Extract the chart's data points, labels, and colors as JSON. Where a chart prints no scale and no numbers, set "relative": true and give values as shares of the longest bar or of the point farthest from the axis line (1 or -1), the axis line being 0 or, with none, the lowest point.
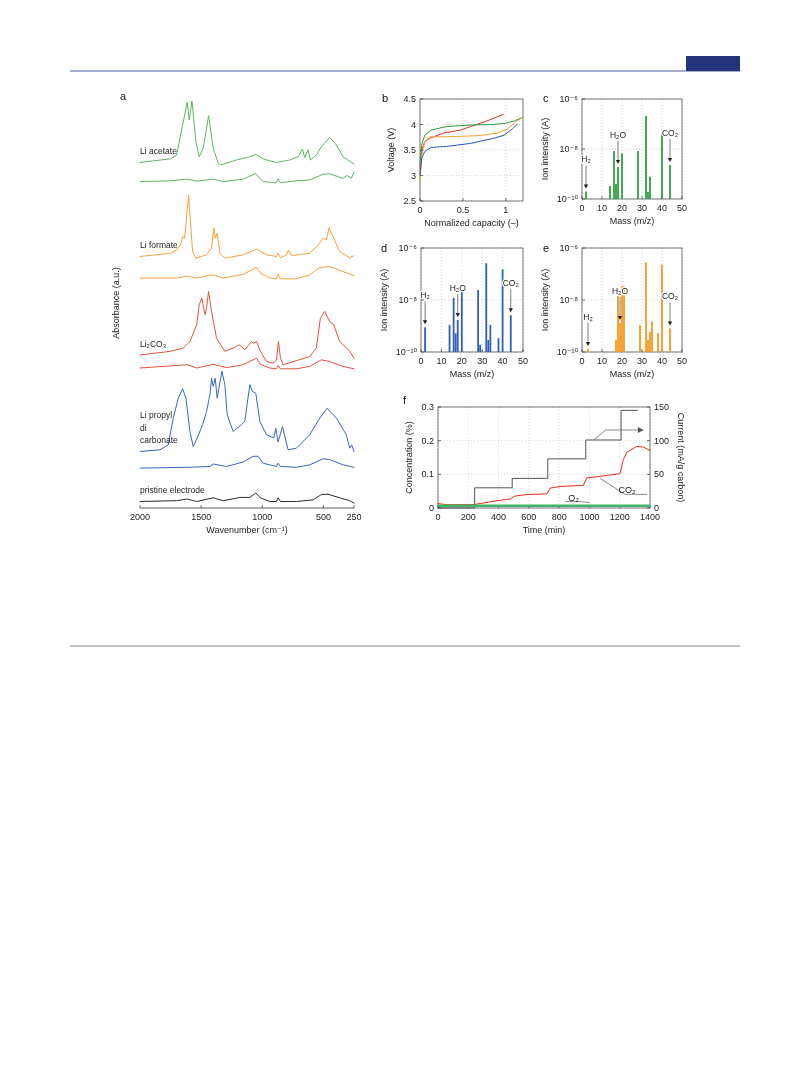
{
  "chart_data": [
    {
      "type": "line",
      "title": "a",
      "relative": true,
      "xlabel": "Wavenumber (cm⁻¹)",
      "ylabel": "Absorbance (a.u.)",
      "xlim": [
        2000,
        250
      ],
      "xticks": [
        2000,
        1500,
        1000,
        500,
        250
      ],
      "tick_labels": "x",
      "series": [
        {
          "name": "Li acetate",
          "color": "#5db760",
          "x": [
            2000,
            1750,
            1701,
            1614,
            1597,
            1575,
            1543,
            1516,
            1483,
            1439,
            1401,
            1360,
            1339,
            1211,
            1102,
            1053,
            993,
            939,
            884,
            775,
            707,
            672,
            653,
            626,
            607,
            558,
            517,
            490,
            449,
            394,
            340,
            250
          ],
          "values": [
            0.849,
            0.858,
            0.867,
            0.997,
            0.953,
            1.0,
            0.9,
            0.863,
            0.884,
            0.964,
            0.884,
            0.847,
            0.843,
            0.855,
            0.863,
            0.869,
            0.858,
            0.853,
            0.849,
            0.855,
            0.863,
            0.882,
            0.861,
            0.88,
            0.855,
            0.867,
            0.888,
            0.896,
            0.911,
            0.892,
            0.863,
            0.845
          ]
        },
        {
          "color": "#5db760",
          "x": [
            2000,
            1750,
            1614,
            1537,
            1401,
            1320,
            1156,
            1053,
            1031,
            993,
            884,
            871,
            851,
            721,
            612,
            503,
            449,
            340,
            307,
            272,
            250
          ],
          "values": [
            0.802,
            0.804,
            0.808,
            0.803,
            0.808,
            0.802,
            0.808,
            0.822,
            0.814,
            0.802,
            0.799,
            0.809,
            0.799,
            0.804,
            0.806,
            0.82,
            0.821,
            0.81,
            0.817,
            0.81,
            0.825
          ]
        },
        {
          "name": "Li formate",
          "color": "#f6a03c",
          "x": [
            2000,
            1750,
            1701,
            1668,
            1652,
            1635,
            1603,
            1570,
            1543,
            1456,
            1415,
            1396,
            1385,
            1369,
            1347,
            1306,
            1156,
            1047,
            966,
            884,
            871,
            851,
            802,
            786,
            762,
            612,
            544,
            503,
            476,
            454,
            422,
            367,
            285,
            250
          ],
          "values": [
            0.618,
            0.626,
            0.634,
            0.646,
            0.667,
            0.663,
            0.769,
            0.63,
            0.614,
            0.622,
            0.638,
            0.688,
            0.663,
            0.675,
            0.626,
            0.614,
            0.622,
            0.636,
            0.622,
            0.618,
            0.626,
            0.615,
            0.622,
            0.634,
            0.62,
            0.626,
            0.646,
            0.663,
            0.659,
            0.688,
            0.667,
            0.63,
            0.615,
            0.62
          ]
        },
        {
          "color": "#f6a03c",
          "x": [
            2000,
            1701,
            1614,
            1537,
            1401,
            1320,
            1156,
            1047,
            1015,
            939,
            884,
            871,
            851,
            721,
            612,
            530,
            449,
            340,
            250
          ],
          "values": [
            0.565,
            0.565,
            0.57,
            0.565,
            0.573,
            0.565,
            0.574,
            0.591,
            0.577,
            0.565,
            0.563,
            0.574,
            0.563,
            0.563,
            0.573,
            0.591,
            0.593,
            0.581,
            0.571
          ]
        },
        {
          "name": "Li₂CO₃",
          "color": "#e5533d",
          "x": [
            2000,
            1750,
            1646,
            1592,
            1537,
            1516,
            1494,
            1469,
            1456,
            1439,
            1415,
            1374,
            1306,
            1238,
            1189,
            1143,
            1088,
            1075,
            1047,
            1015,
            966,
            912,
            884,
            868,
            851,
            830,
            721,
            612,
            558,
            525,
            490,
            449,
            416,
            367,
            285,
            250
          ],
          "values": [
            0.376,
            0.385,
            0.393,
            0.409,
            0.45,
            0.499,
            0.516,
            0.475,
            0.491,
            0.532,
            0.483,
            0.417,
            0.385,
            0.393,
            0.401,
            0.389,
            0.409,
            0.405,
            0.409,
            0.385,
            0.36,
            0.356,
            0.363,
            0.409,
            0.368,
            0.352,
            0.362,
            0.372,
            0.393,
            0.466,
            0.483,
            0.458,
            0.45,
            0.409,
            0.385,
            0.368
          ]
        },
        {
          "color": "#e5533d",
          "x": [
            2000,
            1614,
            1537,
            1401,
            1292,
            1156,
            1047,
            1015,
            939,
            884,
            871,
            851,
            721,
            612,
            517,
            449,
            340,
            250
          ],
          "values": [
            0.344,
            0.352,
            0.344,
            0.353,
            0.345,
            0.352,
            0.368,
            0.353,
            0.344,
            0.342,
            0.35,
            0.342,
            0.342,
            0.348,
            0.364,
            0.36,
            0.348,
            0.342
          ]
        },
        {
          "name": "Li propyl di carbonate",
          "color": "#3a66c0",
          "x": [
            2000,
            1837,
            1769,
            1728,
            1687,
            1652,
            1624,
            1592,
            1565,
            1532,
            1488,
            1456,
            1428,
            1415,
            1401,
            1385,
            1369,
            1330,
            1306,
            1287,
            1238,
            1170,
            1143,
            1102,
            1080,
            1053,
            1020,
            966,
            906,
            890,
            871,
            835,
            789,
            721,
            612,
            530,
            470,
            394,
            313,
            285,
            269,
            250
          ],
          "values": [
            0.139,
            0.143,
            0.155,
            0.221,
            0.27,
            0.293,
            0.27,
            0.188,
            0.151,
            0.172,
            0.205,
            0.237,
            0.278,
            0.319,
            0.299,
            0.319,
            0.27,
            0.336,
            0.303,
            0.229,
            0.188,
            0.205,
            0.213,
            0.303,
            0.286,
            0.282,
            0.213,
            0.18,
            0.172,
            0.196,
            0.162,
            0.2,
            0.143,
            0.147,
            0.18,
            0.221,
            0.245,
            0.221,
            0.18,
            0.147,
            0.155,
            0.139
          ]
        },
        {
          "color": "#3a66c0",
          "x": [
            2000,
            1614,
            1428,
            1401,
            1292,
            1156,
            1075,
            1034,
            993,
            884,
            871,
            851,
            721,
            612,
            503,
            449,
            340,
            250
          ],
          "values": [
            0.098,
            0.1,
            0.102,
            0.108,
            0.102,
            0.113,
            0.127,
            0.127,
            0.11,
            0.102,
            0.11,
            0.102,
            0.1,
            0.106,
            0.121,
            0.119,
            0.106,
            0.1
          ]
        },
        {
          "name": "pristine electrode",
          "color": "#2b2b2b",
          "x": [
            2000,
            1701,
            1614,
            1537,
            1401,
            1320,
            1183,
            1102,
            1053,
            1015,
            939,
            884,
            871,
            851,
            721,
            585,
            517,
            463,
            367,
            285,
            250
          ],
          "values": [
            0.016,
            0.018,
            0.022,
            0.016,
            0.025,
            0.018,
            0.026,
            0.026,
            0.037,
            0.025,
            0.016,
            0.016,
            0.025,
            0.016,
            0.016,
            0.02,
            0.033,
            0.034,
            0.025,
            0.018,
            0.012
          ]
        }
      ]
    },
    {
      "type": "line",
      "title": "b",
      "xlabel": "Normalized capacity (–)",
      "ylabel": "Voltage (V)",
      "xlim": [
        0,
        1.2
      ],
      "xticks": [
        0,
        0.5,
        1
      ],
      "ylim": [
        2.5,
        4.5
      ],
      "yticks": [
        2.5,
        3,
        3.5,
        4,
        4.5
      ],
      "grid": true,
      "series": [
        {
          "color": "#e0302a",
          "x": [
            0,
            0.02,
            0.055,
            0.114,
            0.27,
            0.47,
            0.59,
            0.78,
            0.9,
            0.97
          ],
          "values": [
            3.14,
            3.5,
            3.66,
            3.73,
            3.83,
            3.89,
            3.96,
            4.07,
            4.15,
            4.2
          ]
        },
        {
          "color": "#2e9a3e",
          "x": [
            0,
            0.02,
            0.055,
            0.13,
            0.31,
            0.59,
            0.86,
            0.98,
            1.1,
            1.2
          ],
          "values": [
            3.21,
            3.6,
            3.79,
            3.89,
            3.96,
            3.99,
            4.0,
            4.02,
            4.07,
            4.14
          ]
        },
        {
          "color": "#f5a030",
          "x": [
            0,
            0.02,
            0.055,
            0.114,
            0.31,
            0.67,
            0.9,
            1.02,
            1.12,
            1.2
          ],
          "values": [
            2.88,
            3.4,
            3.66,
            3.76,
            3.76,
            3.78,
            3.83,
            3.91,
            4.06,
            4.14
          ]
        },
        {
          "color": "#2857c0",
          "x": [
            0,
            0.02,
            0.055,
            0.13,
            0.31,
            0.59,
            0.86,
            0.98,
            1.08,
            1.13
          ],
          "values": [
            3.01,
            3.34,
            3.47,
            3.55,
            3.57,
            3.63,
            3.73,
            3.79,
            3.92,
            4.0
          ]
        }
      ]
    },
    {
      "type": "bar",
      "title": "c",
      "xlabel": "Mass (m/z)",
      "ylabel": "Ion intensity (A)",
      "log": "y",
      "xlim": [
        0,
        50
      ],
      "xticks": [
        0,
        10,
        20,
        30,
        40,
        50
      ],
      "ylim": [
        1e-10,
        1e-06
      ],
      "yticks": [
        {
          "value": 1e-10,
          "label": "10⁻¹⁰"
        },
        {
          "value": 1e-08,
          "label": "10⁻⁸"
        },
        {
          "value": 1e-06,
          "label": "10⁻⁶"
        }
      ],
      "grid": true,
      "color": "#2ea043",
      "x": [
        2,
        14,
        16,
        17,
        18,
        20,
        28,
        32,
        33,
        34,
        40,
        44
      ],
      "values": [
        2e-10,
        3.3e-10,
        8.3e-09,
        4e-10,
        1.9e-09,
        6.7e-09,
        8.3e-09,
        2.1e-07,
        1.9e-10,
        7.8e-10,
        4.9e-08,
        2.3e-09
      ],
      "annotations": [
        {
          "text": "H₂",
          "x": 2,
          "y": 2e-10
        },
        {
          "text": "H₂O",
          "x": 18,
          "y": 1.9e-09
        },
        {
          "text": "CO₂",
          "x": 44,
          "y": 2.3e-09
        }
      ]
    },
    {
      "type": "bar",
      "title": "d",
      "xlabel": "Mass (m/z)",
      "ylabel": "Ion intensity (A)",
      "log": "y",
      "xlim": [
        0,
        50
      ],
      "xticks": [
        0,
        10,
        20,
        30,
        40,
        50
      ],
      "ylim": [
        1e-10,
        1e-06
      ],
      "yticks": [
        {
          "value": 1e-10,
          "label": "10⁻¹⁰"
        },
        {
          "value": 1e-08,
          "label": "10⁻⁸"
        },
        {
          "value": 1e-06,
          "label": "10⁻⁶"
        }
      ],
      "grid": true,
      "color": "#2f5fb8",
      "x": [
        2,
        14,
        16,
        17,
        18,
        20,
        28,
        29,
        32,
        33,
        34,
        38,
        40,
        44
      ],
      "values": [
        8.9e-10,
        1.1e-09,
        1.2e-08,
        5.2e-10,
        1.7e-09,
        2.2e-08,
        2.4e-08,
        1.9e-10,
        2.6e-07,
        2.9e-10,
        1.1e-09,
        3.4e-10,
        1.5e-07,
        2.6e-09
      ],
      "annotations": [
        {
          "text": "H₂",
          "x": 2,
          "y": 8.9e-10
        },
        {
          "text": "H₂O",
          "x": 18,
          "y": 1.7e-09
        },
        {
          "text": "CO₂",
          "x": 44,
          "y": 2.6e-09
        }
      ]
    },
    {
      "type": "bar",
      "title": "e",
      "xlabel": "Mass (m/z)",
      "ylabel": "Ion intensity (A)",
      "log": "y",
      "xlim": [
        0,
        50
      ],
      "xticks": [
        0,
        10,
        20,
        30,
        40,
        50
      ],
      "ylim": [
        1e-10,
        1e-06
      ],
      "yticks": [
        {
          "value": 1e-10,
          "label": "10⁻¹⁰"
        },
        {
          "value": 1e-08,
          "label": "10⁻⁸"
        },
        {
          "value": 1e-06,
          "label": "10⁻⁶"
        }
      ],
      "grid": true,
      "color": "#f59a23",
      "x": [
        3,
        17,
        18,
        19,
        20,
        21,
        29,
        32,
        33,
        34,
        35,
        38,
        40,
        44
      ],
      "values": [
        1.3e-10,
        2.9e-10,
        1.5e-08,
        1.3e-09,
        3.3e-08,
        3.5e-08,
        1.1e-09,
        2.8e-07,
        2.9e-10,
        6e-10,
        1.5e-09,
        5.5e-10,
        2.3e-07,
        8.1e-10
      ],
      "annotations": [
        {
          "text": "H₂",
          "x": 3,
          "y": 1.3e-10
        },
        {
          "text": "H₂O",
          "x": 19,
          "y": 1.3e-09
        },
        {
          "text": "CO₂",
          "x": 44,
          "y": 8.1e-10
        }
      ]
    },
    {
      "type": "line",
      "title": "f",
      "xlabel": "Time (min)",
      "ylabel": "Concentration (%)",
      "y2label": "Current (mA/g carbon)",
      "xlim": [
        0,
        1400
      ],
      "xticks": [
        0,
        200,
        400,
        600,
        800,
        1000,
        1200,
        1400
      ],
      "ylim": [
        0,
        0.3
      ],
      "yticks": [
        0,
        0.1,
        0.2,
        0.3
      ],
      "y2lim": [
        0,
        150
      ],
      "y2ticks": [
        0,
        50,
        100,
        150
      ],
      "grid": true,
      "series": [
        {
          "type": "step",
          "axis": "y2",
          "color": "#555555",
          "x": [
            0,
            242,
            490,
            725,
            976,
            1209,
            1319
          ],
          "values": [
            0,
            30,
            44,
            73,
            101,
            145,
            145
          ]
        },
        {
          "name": "CO₂",
          "color": "#ee2a1e",
          "x": [
            0,
            59,
            235,
            367,
            477,
            503,
            587,
            719,
            741,
            807,
            960,
            982,
            1070,
            1202,
            1224,
            1246,
            1312,
            1356,
            1400
          ],
          "values": [
            0.013,
            0.01,
            0.01,
            0.02,
            0.027,
            0.035,
            0.04,
            0.042,
            0.059,
            0.064,
            0.067,
            0.089,
            0.094,
            0.102,
            0.144,
            0.165,
            0.183,
            0.181,
            0.171
          ]
        },
        {
          "name": "O₂",
          "color": "#3cb868",
          "x": [
            0,
            200,
            400,
            600,
            800,
            1000,
            1200,
            1400
          ],
          "values": [
            0.007,
            0.007,
            0.007,
            0.007,
            0.007,
            0.007,
            0.007,
            0.007
          ]
        }
      ]
    }
  ]
}
